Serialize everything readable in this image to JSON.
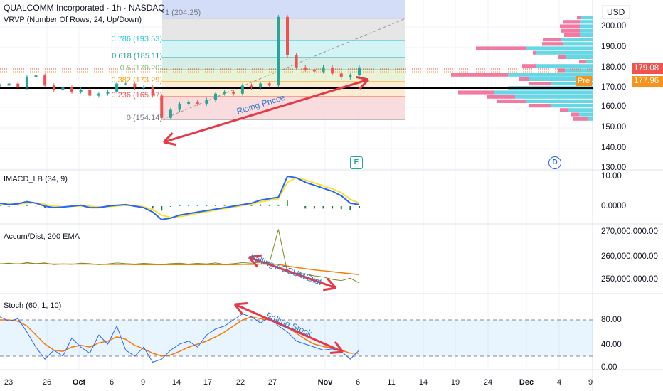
{
  "header": {
    "title": "QUALCOMM Incorporated · 1h · NASDAQ",
    "vrvp": "VRVP (Number Of Rows, 24, Up/Down)",
    "currency": "USD"
  },
  "colors": {
    "up": "#26a69a",
    "down": "#ef5350",
    "vp_up": "#4dd0e1",
    "vp_down": "#f06292",
    "arrow": "#e53945",
    "macd": "#2962ff",
    "signal": "#f5e52a",
    "ad": "#7b8a1d",
    "ema": "#f57c00",
    "stoch_k": "#2962ff",
    "stoch_d": "#f57c00"
  },
  "fib": [
    {
      "label": "1 (204.25)",
      "color": "#787b86",
      "fill": "#c9d5f5"
    },
    {
      "label": "0.786 (193.53)",
      "color": "#26c6da",
      "fill": "#e0e0e0"
    },
    {
      "label": "0.618 (185.11)",
      "color": "#26a69a",
      "fill": "#c8f0f2"
    },
    {
      "label": "0.5 (179.20)",
      "color": "#81c784",
      "fill": "#cbe9e0"
    },
    {
      "label": "0.382 (173.29)",
      "color": "#ff9800",
      "fill": "#e2f0cf"
    },
    {
      "label": "0.236 (165.97)",
      "color": "#ef5350",
      "fill": "#fde7c6"
    },
    {
      "label": "0 (154.14)",
      "color": "#787b86",
      "fill": "#f8d3d6"
    }
  ],
  "price_axis": [
    "200.00",
    "190.00",
    "180.00",
    "170.00",
    "160.00",
    "150.00",
    "140.00",
    "130.00"
  ],
  "last_price": "179.08",
  "pre_label": "Pre",
  "pre_price": "177.96",
  "badges": {
    "earnings": "E",
    "dividend": "D"
  },
  "annotations": {
    "rising": "Rising Pricce",
    "falling_ad": "Falling ACCUM/Dist",
    "falling_stoch": "Falling Stock"
  },
  "macd_pane": {
    "title": "IMACD_LB (34, 9)",
    "axis": [
      "10.00",
      "0.0000"
    ]
  },
  "ad_pane": {
    "title": "Accum/Dist, 200 EMA",
    "axis": [
      "270,000,000.00",
      "260,000,000.00",
      "250,000,000.00"
    ]
  },
  "stoch_pane": {
    "title": "Stoch (60, 1, 10)",
    "axis": [
      "80.00",
      "40.00",
      "0.00"
    ]
  },
  "time_axis": [
    {
      "t": "23"
    },
    {
      "t": "26"
    },
    {
      "t": "Oct",
      "b": true
    },
    {
      "t": "6"
    },
    {
      "t": "9"
    },
    {
      "t": "14"
    },
    {
      "t": "17"
    },
    {
      "t": "22"
    },
    {
      "t": "27"
    },
    {
      "t": "Nov",
      "b": true
    },
    {
      "t": "6"
    },
    {
      "t": "11"
    },
    {
      "t": "14"
    },
    {
      "t": "19"
    },
    {
      "t": "24"
    },
    {
      "t": "Dec",
      "b": true
    },
    {
      "t": "4"
    },
    {
      "t": "9"
    }
  ],
  "chart_data": {
    "type": "line",
    "price": [
      171,
      172,
      170,
      175,
      176,
      171,
      169,
      170,
      168,
      169,
      166,
      167,
      168,
      172,
      172,
      170,
      170,
      166,
      155,
      159,
      162,
      163,
      162,
      164,
      167,
      168,
      167,
      171,
      170,
      172,
      171,
      205,
      186,
      180,
      179,
      178,
      180,
      177,
      175,
      176,
      180
    ],
    "macd": [
      1,
      0.5,
      0.8,
      1.5,
      1,
      0,
      -0.5,
      -0.3,
      0,
      0.3,
      -0.5,
      -0.5,
      0,
      0.3,
      0.5,
      0,
      -0.5,
      -2,
      -4.5,
      -4,
      -3,
      -2.5,
      -2,
      -1.5,
      -1,
      -0.5,
      0,
      0.5,
      1,
      2,
      2.5,
      3,
      10,
      9.5,
      8,
      7,
      6,
      5,
      3.5,
      1,
      0.5
    ],
    "signal": [
      0.8,
      0.7,
      0.7,
      1,
      1.1,
      0.6,
      0,
      -0.2,
      -0.1,
      0.1,
      0,
      -0.3,
      -0.2,
      0.1,
      0.3,
      0.2,
      -0.2,
      -1.2,
      -3,
      -3.8,
      -3.5,
      -3,
      -2.4,
      -1.9,
      -1.3,
      -0.8,
      -0.3,
      0.2,
      0.7,
      1.4,
      2,
      2.5,
      8,
      9.5,
      8.8,
      7.8,
      6.8,
      5.8,
      4.5,
      2.3,
      1
    ],
    "accum_dist": [
      256.5,
      256.8,
      256.4,
      257,
      256.6,
      256.9,
      256.2,
      256.5,
      256.3,
      256.8,
      256.6,
      256.2,
      256.5,
      256.9,
      256.6,
      256.4,
      256.7,
      256.5,
      256.3,
      256.6,
      256.8,
      256.4,
      256.7,
      256.5,
      256.9,
      256.3,
      256.6,
      257,
      256.8,
      257.2,
      257,
      271,
      253,
      252.6,
      252.3,
      251.5,
      251,
      250,
      249.5,
      250.5,
      248.5
    ],
    "ad_ema": [
      256.5,
      256.5,
      256.5,
      256.5,
      256.5,
      256.5,
      256.4,
      256.4,
      256.4,
      256.4,
      256.4,
      256.3,
      256.3,
      256.3,
      256.3,
      256.2,
      256.2,
      256.2,
      256.2,
      256.2,
      256.2,
      256.2,
      256.2,
      256.2,
      256.2,
      256.2,
      256.2,
      256.3,
      256.3,
      256.4,
      256.4,
      256.3,
      255.6,
      255,
      254.5,
      254,
      253.6,
      253.2,
      252.8,
      252.4,
      252
    ],
    "stoch_k": [
      85,
      78,
      82,
      60,
      35,
      15,
      30,
      20,
      50,
      35,
      25,
      55,
      40,
      70,
      30,
      20,
      35,
      10,
      15,
      30,
      40,
      45,
      35,
      55,
      65,
      70,
      80,
      90,
      85,
      75,
      85,
      70,
      60,
      45,
      40,
      35,
      30,
      32,
      28,
      15,
      30
    ],
    "stoch_d": [
      80,
      80,
      78,
      70,
      55,
      40,
      30,
      28,
      35,
      38,
      35,
      42,
      45,
      52,
      48,
      38,
      32,
      25,
      20,
      22,
      28,
      35,
      40,
      45,
      52,
      60,
      70,
      80,
      85,
      82,
      80,
      76,
      68,
      58,
      48,
      40,
      36,
      33,
      30,
      25,
      25
    ],
    "volume_profile_up": [
      17,
      19,
      19,
      19,
      19,
      46,
      42,
      95,
      80,
      38,
      10,
      80,
      40,
      120,
      90,
      60,
      120,
      140,
      110,
      95,
      60,
      35,
      20,
      8
    ],
    "volume_profile_down": [
      6,
      24,
      28,
      27,
      22,
      25,
      30,
      70,
      5,
      12,
      10,
      20,
      10,
      80,
      15,
      30,
      0,
      50,
      40,
      40,
      30,
      12,
      12,
      20
    ]
  }
}
